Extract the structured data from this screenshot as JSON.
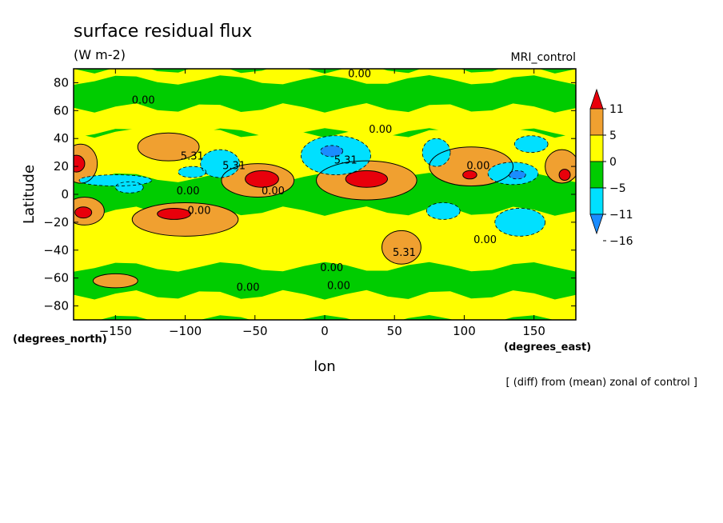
{
  "chart_data": {
    "type": "heatmap",
    "title": "surface residual flux",
    "subtitle": "(W m-2)",
    "dataset_label": "MRI_control",
    "xlabel": "lon",
    "ylabel": "Latitude",
    "x_unit_label": "(degrees_east)",
    "y_unit_label": "(degrees_north)",
    "footnote": "[ (diff) from (mean) zonal of control ]",
    "xlim": [
      -180,
      180
    ],
    "ylim": [
      -90,
      90
    ],
    "x_ticks": [
      -150,
      -100,
      -50,
      0,
      50,
      100,
      150
    ],
    "y_ticks": [
      80,
      60,
      40,
      20,
      0,
      -20,
      -40,
      -60,
      -80
    ],
    "colorbar": {
      "levels": [
        11,
        5,
        0,
        -5,
        -11,
        -16
      ],
      "colors": [
        "#e8000b",
        "#f0a030",
        "#ffff00",
        "#00cc00",
        "#00e0ff",
        "#1a8cff"
      ],
      "bins": [
        {
          "range": "> 11",
          "color": "#e8000b"
        },
        {
          "range": "5 to 11",
          "color": "#f0a030"
        },
        {
          "range": "0 to 5",
          "color": "#ffff00"
        },
        {
          "range": "-5 to 0",
          "color": "#00cc00"
        },
        {
          "range": "-11 to -5",
          "color": "#00e0ff"
        },
        {
          "range": "-16 to -11",
          "color": "#1a8cff"
        }
      ],
      "over_color": "#e8000b",
      "under_color": "#1a8cff"
    },
    "contour_labels": [
      {
        "text": "0.00",
        "lon": 25,
        "lat": 84
      },
      {
        "text": "0.00",
        "lon": -130,
        "lat": 65
      },
      {
        "text": "0.00",
        "lon": 40,
        "lat": 44
      },
      {
        "text": "5.31",
        "lon": -95,
        "lat": 25
      },
      {
        "text": "5.31",
        "lon": -65,
        "lat": 18
      },
      {
        "text": "5.31",
        "lon": 15,
        "lat": 22
      },
      {
        "text": "0.00",
        "lon": 110,
        "lat": 18
      },
      {
        "text": "0.00",
        "lon": -98,
        "lat": 0
      },
      {
        "text": "0.00",
        "lon": -37,
        "lat": 0
      },
      {
        "text": "0.00",
        "lon": -90,
        "lat": -14
      },
      {
        "text": "0.00",
        "lon": 115,
        "lat": -35
      },
      {
        "text": "5.31",
        "lon": 57,
        "lat": -44
      },
      {
        "text": "0.00",
        "lon": 5,
        "lat": -55
      },
      {
        "text": "0.00",
        "lon": -55,
        "lat": -69
      },
      {
        "text": "0.00",
        "lon": 10,
        "lat": -68
      }
    ],
    "features": [
      {
        "value": 6,
        "lon": -175,
        "lat": 22,
        "rx": 12,
        "ry": 14
      },
      {
        "value": 14,
        "lon": -178,
        "lat": 22,
        "rx": 6,
        "ry": 6
      },
      {
        "value": 6,
        "lon": -172,
        "lat": -12,
        "rx": 14,
        "ry": 10
      },
      {
        "value": 14,
        "lon": -173,
        "lat": -13,
        "rx": 6,
        "ry": 4
      },
      {
        "value": 6,
        "lon": -112,
        "lat": 34,
        "rx": 22,
        "ry": 10
      },
      {
        "value": 6,
        "lon": -100,
        "lat": -18,
        "rx": 38,
        "ry": 12
      },
      {
        "value": 14,
        "lon": -108,
        "lat": -14,
        "rx": 12,
        "ry": 4
      },
      {
        "value": 6,
        "lon": -48,
        "lat": 10,
        "rx": 26,
        "ry": 12
      },
      {
        "value": 14,
        "lon": -45,
        "lat": 11,
        "rx": 12,
        "ry": 6
      },
      {
        "value": 6,
        "lon": 30,
        "lat": 10,
        "rx": 36,
        "ry": 14
      },
      {
        "value": 14,
        "lon": 30,
        "lat": 11,
        "rx": 15,
        "ry": 6
      },
      {
        "value": 6,
        "lon": 105,
        "lat": 20,
        "rx": 30,
        "ry": 14
      },
      {
        "value": 14,
        "lon": 104,
        "lat": 14,
        "rx": 5,
        "ry": 3
      },
      {
        "value": 6,
        "lon": 170,
        "lat": 20,
        "rx": 12,
        "ry": 12
      },
      {
        "value": 14,
        "lon": 172,
        "lat": 14,
        "rx": 4,
        "ry": 4
      },
      {
        "value": 6,
        "lon": 55,
        "lat": -38,
        "rx": 14,
        "ry": 12
      },
      {
        "value": 6,
        "lon": -150,
        "lat": -62,
        "rx": 16,
        "ry": 5
      },
      {
        "value": -7,
        "lon": -150,
        "lat": 10,
        "rx": 26,
        "ry": 4
      },
      {
        "value": -7,
        "lon": -95,
        "lat": 16,
        "rx": 10,
        "ry": 4
      },
      {
        "value": -7,
        "lon": -75,
        "lat": 22,
        "rx": 14,
        "ry": 10
      },
      {
        "value": -7,
        "lon": 8,
        "lat": 28,
        "rx": 25,
        "ry": 14
      },
      {
        "value": -13,
        "lon": 5,
        "lat": 31,
        "rx": 8,
        "ry": 4
      },
      {
        "value": -7,
        "lon": 80,
        "lat": 30,
        "rx": 10,
        "ry": 10
      },
      {
        "value": -7,
        "lon": 135,
        "lat": 15,
        "rx": 18,
        "ry": 8
      },
      {
        "value": -13,
        "lon": 138,
        "lat": 14,
        "rx": 6,
        "ry": 3
      },
      {
        "value": -7,
        "lon": 148,
        "lat": 36,
        "rx": 12,
        "ry": 6
      },
      {
        "value": -7,
        "lon": 85,
        "lat": -12,
        "rx": 12,
        "ry": 6
      },
      {
        "value": -7,
        "lon": 140,
        "lat": -20,
        "rx": 18,
        "ry": 10
      },
      {
        "value": -7,
        "lon": -140,
        "lat": 5,
        "rx": 10,
        "ry": 4
      }
    ]
  }
}
